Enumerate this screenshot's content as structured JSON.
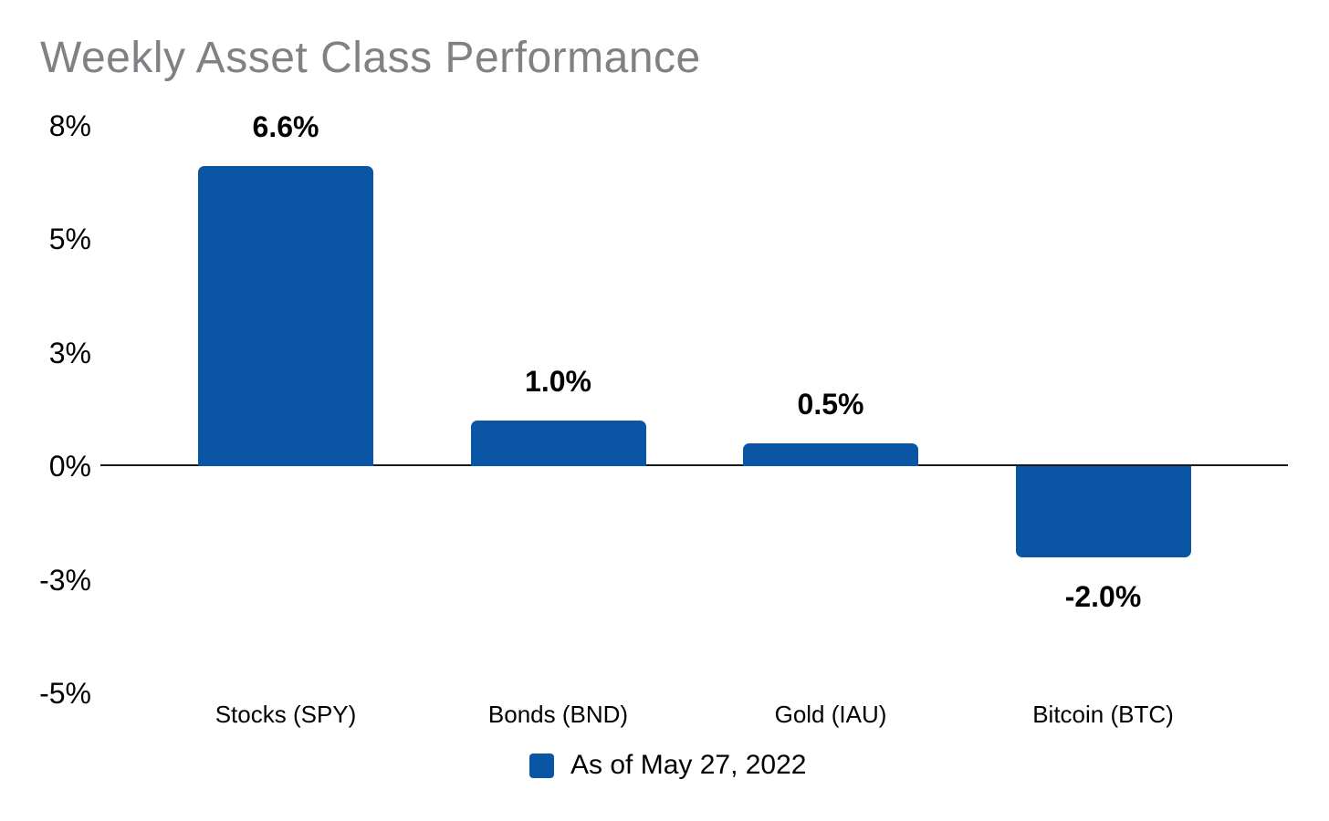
{
  "chart_data": {
    "type": "bar",
    "title": "Weekly Asset Class Performance",
    "categories": [
      "Stocks (SPY)",
      "Bonds (BND)",
      "Gold (IAU)",
      "Bitcoin (BTC)"
    ],
    "values": [
      6.6,
      1.0,
      0.5,
      -2.0
    ],
    "value_labels": [
      "6.6%",
      "1.0%",
      "0.5%",
      "-2.0%"
    ],
    "yticks": [
      {
        "label": "8%",
        "value": 7.5
      },
      {
        "label": "5%",
        "value": 5
      },
      {
        "label": "3%",
        "value": 2.5
      },
      {
        "label": "0%",
        "value": 0
      },
      {
        "label": "-3%",
        "value": -2.5
      },
      {
        "label": "-5%",
        "value": -5
      }
    ],
    "ylim": [
      -5,
      7.5
    ],
    "grid": false,
    "legend": {
      "label": "As of May 27, 2022",
      "position": "bottom-center"
    },
    "colors": {
      "bar": "#0B55A5",
      "title": "#808184",
      "text": "#000000",
      "axis_line": "#1A1A1A",
      "background": "#FFFFFF"
    }
  }
}
